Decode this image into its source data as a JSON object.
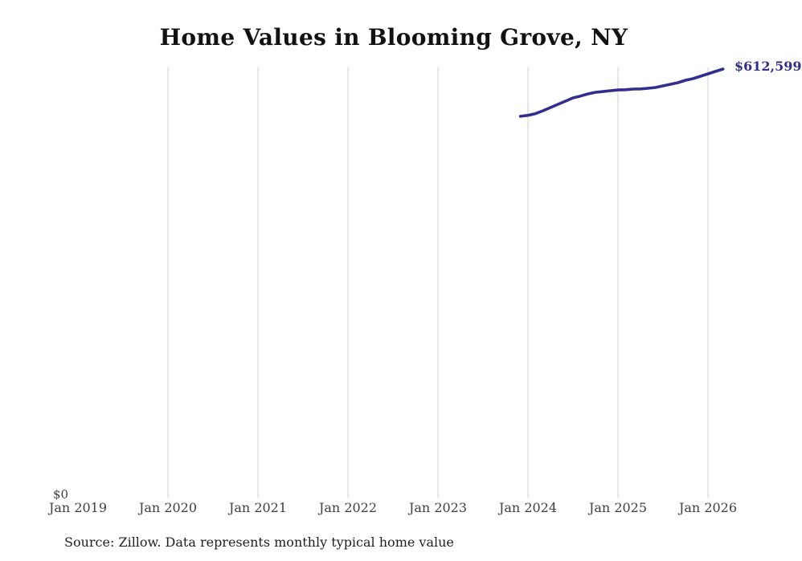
{
  "title": "Home Values in Blooming Grove, NY",
  "footer": {
    "source_note": "Source: Zillow. Data represents monthly typical home value"
  },
  "chart_data": {
    "type": "line",
    "title": "Home Values in Blooming Grove, NY",
    "xlabel": "",
    "ylabel": "",
    "ylim": [
      0,
      620000
    ],
    "grid": "vertical-only",
    "legend": "none",
    "x_tick_labels": [
      "Jan 2019",
      "Jan 2020",
      "Jan 2021",
      "Jan 2022",
      "Jan 2023",
      "Jan 2024",
      "Jan 2025",
      "Jan 2026"
    ],
    "y_zero_label": "$0",
    "end_value_label": "$612,599",
    "line_color": "#322e8f",
    "grid_color": "#cfcfcf",
    "series": [
      {
        "name": "Typical home value",
        "x": [
          "Dec 2023",
          "Jan 2024",
          "Feb 2024",
          "Mar 2024",
          "Apr 2024",
          "May 2024",
          "Jun 2024",
          "Jul 2024",
          "Aug 2024",
          "Sep 2024",
          "Oct 2024",
          "Nov 2024",
          "Dec 2024",
          "Jan 2025",
          "Feb 2025",
          "Mar 2025",
          "Apr 2025",
          "May 2025",
          "Jun 2025",
          "Jul 2025",
          "Aug 2025",
          "Sep 2025",
          "Oct 2025",
          "Nov 2025",
          "Dec 2025",
          "Jan 2026",
          "Feb 2026",
          "Mar 2026"
        ],
        "values": [
          545000,
          546400,
          548800,
          552900,
          557500,
          562100,
          566700,
          571300,
          573900,
          577000,
          579300,
          580400,
          581600,
          582700,
          583000,
          583900,
          584200,
          585100,
          586200,
          588500,
          590800,
          593100,
          596500,
          598800,
          602300,
          605700,
          609200,
          612599
        ]
      }
    ]
  }
}
